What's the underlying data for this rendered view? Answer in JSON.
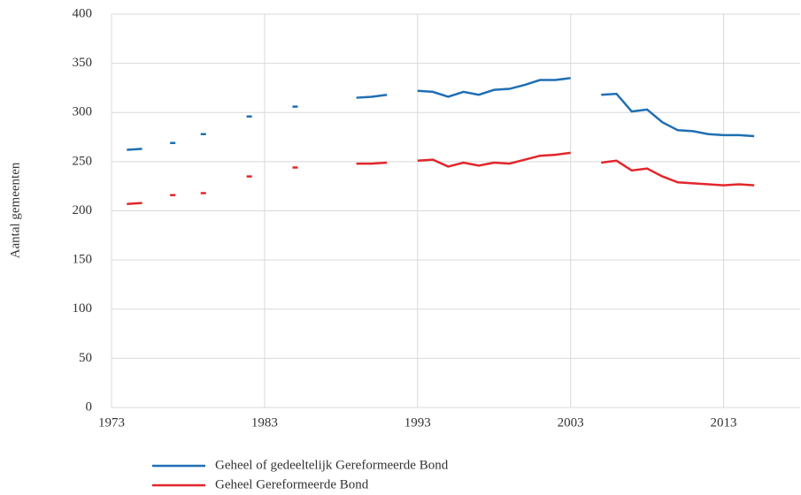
{
  "chart_data": {
    "type": "line",
    "y_label": "Aantal gemeenten",
    "x": [
      1974,
      1975,
      1976,
      1977,
      1978,
      1979,
      1980,
      1981,
      1982,
      1983,
      1984,
      1985,
      1986,
      1987,
      1988,
      1989,
      1990,
      1991,
      1992,
      1993,
      1994,
      1995,
      1996,
      1997,
      1998,
      1999,
      2000,
      2001,
      2002,
      2003,
      2004,
      2005,
      2006,
      2007,
      2008,
      2009,
      2010,
      2011,
      2012,
      2013,
      2014,
      2015
    ],
    "series": [
      {
        "name": "Geheel of gedeeltelijk Gereformeerde Bond",
        "color": "#1f6fb4",
        "values": [
          262,
          263,
          null,
          269,
          null,
          278,
          null,
          null,
          296,
          null,
          null,
          306,
          null,
          null,
          null,
          315,
          316,
          318,
          null,
          322,
          321,
          316,
          321,
          318,
          323,
          324,
          328,
          333,
          333,
          335,
          null,
          318,
          319,
          301,
          303,
          290,
          282,
          281,
          278,
          277,
          277,
          276
        ]
      },
      {
        "name": "Geheel Gereformeerde Bond",
        "color": "#e3262b",
        "values": [
          207,
          208,
          null,
          216,
          null,
          218,
          null,
          null,
          235,
          null,
          null,
          244,
          null,
          null,
          null,
          248,
          248,
          249,
          null,
          251,
          252,
          245,
          249,
          246,
          249,
          248,
          252,
          256,
          257,
          259,
          null,
          249,
          251,
          241,
          243,
          235,
          229,
          228,
          227,
          226,
          227,
          226
        ]
      }
    ],
    "xlim": [
      1973,
      2018
    ],
    "xticks": [
      1973,
      1983,
      1993,
      2003,
      2013
    ],
    "ylim": [
      0,
      400
    ],
    "yticks": [
      0,
      50,
      100,
      150,
      200,
      250,
      300,
      350,
      400
    ],
    "grid": true,
    "legend": "bottom"
  }
}
